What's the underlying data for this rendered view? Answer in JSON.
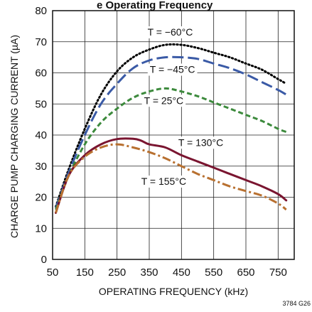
{
  "chart_data": {
    "type": "line",
    "title": "e Operating Frequency",
    "xlabel": "OPERATING FREQUENCY (kHz)",
    "ylabel": "CHARGE PUMP CHARGING CURRENT (µA)",
    "xlim": [
      50,
      800
    ],
    "ylim": [
      0,
      80
    ],
    "x_ticks": [
      "50",
      "150",
      "250",
      "350",
      "450",
      "550",
      "650",
      "750"
    ],
    "y_ticks": [
      "0",
      "10",
      "20",
      "30",
      "40",
      "50",
      "60",
      "70",
      "80"
    ],
    "grid": true,
    "figure_id": "3784 G26",
    "series": [
      {
        "name": "T = −60°C",
        "color": "#000000",
        "style": "dotted",
        "x": [
          60,
          100,
          150,
          200,
          250,
          300,
          350,
          400,
          450,
          500,
          550,
          600,
          650,
          700,
          750,
          775
        ],
        "y": [
          17,
          29,
          42,
          53,
          60.5,
          65,
          67.5,
          69,
          69,
          68,
          66.5,
          65,
          63,
          61,
          58,
          56.5
        ]
      },
      {
        "name": "T = −45°C",
        "color": "#3a5aa6",
        "style": "longdash",
        "x": [
          60,
          100,
          150,
          200,
          250,
          300,
          350,
          400,
          450,
          500,
          550,
          600,
          650,
          700,
          750,
          775
        ],
        "y": [
          16.5,
          28,
          40,
          50,
          56.5,
          61.5,
          64,
          65,
          65,
          64.5,
          63,
          61.5,
          59.5,
          57,
          54.5,
          53
        ]
      },
      {
        "name": "T = 25°C",
        "color": "#3c8a3c",
        "style": "shortdash",
        "x": [
          60,
          100,
          150,
          200,
          250,
          300,
          350,
          400,
          450,
          500,
          550,
          600,
          650,
          700,
          750,
          775
        ],
        "y": [
          16,
          27,
          37,
          44,
          48.5,
          52,
          54,
          55,
          54,
          52.5,
          50.5,
          48.5,
          46.5,
          44.5,
          42,
          41
        ]
      },
      {
        "name": "T = 130°C",
        "color": "#7a1530",
        "style": "solid",
        "x": [
          60,
          100,
          150,
          200,
          250,
          300,
          325,
          350,
          400,
          450,
          500,
          550,
          600,
          650,
          700,
          750,
          775
        ],
        "y": [
          15,
          27,
          33.5,
          37,
          38.7,
          38.8,
          38.2,
          37,
          36,
          33.5,
          31.5,
          29.5,
          27.5,
          25.5,
          23.5,
          21,
          19
        ]
      },
      {
        "name": "T = 155°C",
        "color": "#b87030",
        "style": "dashdot",
        "x": [
          60,
          100,
          150,
          200,
          250,
          300,
          350,
          400,
          450,
          500,
          550,
          600,
          650,
          700,
          750,
          775
        ],
        "y": [
          15,
          27,
          33,
          36,
          37,
          36,
          34.5,
          32.5,
          30,
          27.5,
          25.5,
          23.5,
          22,
          20.5,
          18,
          16
        ]
      }
    ],
    "annotations": [
      {
        "text": "T = −60°C",
        "x": 415,
        "y": 72
      },
      {
        "text": "T = −45°C",
        "x": 422,
        "y": 60
      },
      {
        "text": "T = 25°C",
        "x": 395,
        "y": 50
      },
      {
        "text": "T = 130°C",
        "x": 510,
        "y": 36.5
      },
      {
        "text": "T = 155°C",
        "x": 395,
        "y": 24
      }
    ]
  }
}
